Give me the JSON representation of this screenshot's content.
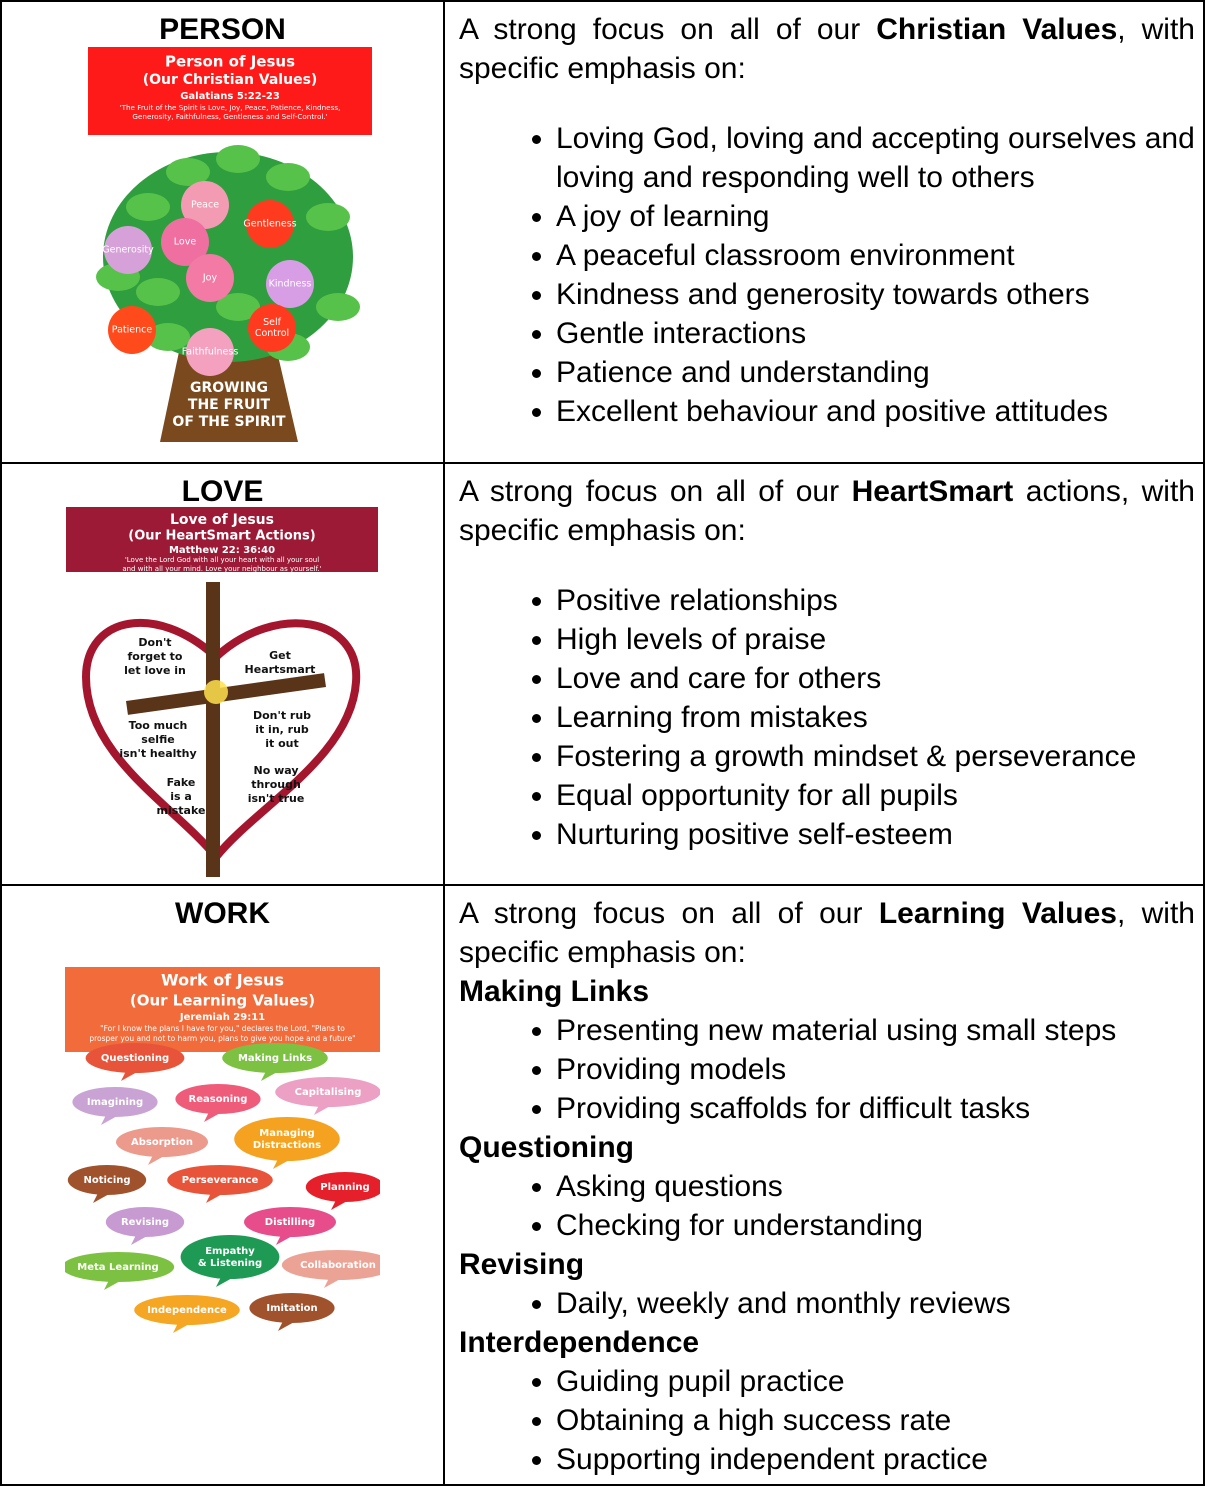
{
  "table": {
    "rows": [
      {
        "heading": "PERSON",
        "poster": {
          "title": "Person of Jesus",
          "subtitle": "(Our Christian Values)",
          "reference": "Galatians 5:22-23",
          "quote": [
            "'The Fruit of the Spirit is Love, Joy, Peace, Patience, Kindness,",
            "Generosity, Faithfulness, Gentleness and Self-Control.'"
          ],
          "labels": [
            [
              "Peace"
            ],
            [
              "Gentleness"
            ],
            [
              "Generosity"
            ],
            [
              "Love"
            ],
            [
              "Joy"
            ],
            [
              "Kindness"
            ],
            [
              "Patience"
            ],
            [
              "Self",
              "Control"
            ],
            [
              "Faithfulness"
            ]
          ],
          "footer": [
            "GROWING",
            "THE FRUIT",
            "OF THE SPIRIT"
          ]
        },
        "intro": {
          "before": "A strong focus on all of our ",
          "bold": "Christian Values",
          "after": ", with specific emphasis on:"
        },
        "bullets": [
          "Loving God, loving and accepting ourselves and loving and responding well to others",
          "A joy of learning",
          "A peaceful classroom environment",
          "Kindness and generosity towards others",
          "Gentle interactions",
          "Patience and understanding",
          "Excellent behaviour and positive attitudes"
        ]
      },
      {
        "heading": "LOVE",
        "poster": {
          "title": "Love of Jesus",
          "subtitle": "(Our HeartSmart Actions)",
          "reference": "Matthew 22: 36:40",
          "quote": [
            "'Love the Lord God with all your heart with all your soul",
            "and with all your mind. Love your neighbour as yourself.'"
          ],
          "labels": [
            [
              "Don't",
              "forget to",
              "let love in"
            ],
            [
              "Get",
              "Heartsmart"
            ],
            [
              "Too much",
              "selfie",
              "isn't healthy"
            ],
            [
              "Don't rub",
              "it in, rub",
              "it out"
            ],
            [
              "Fake",
              "is a",
              "mistake"
            ],
            [
              "No way",
              "through",
              "isn't true"
            ]
          ]
        },
        "intro": {
          "before": "A strong focus on all of our ",
          "bold": "HeartSmart",
          "after": " actions, with specific emphasis on:"
        },
        "bullets": [
          "Positive relationships",
          "High levels of praise",
          "Love and care for others",
          "Learning from mistakes",
          "Fostering a growth mindset & perseverance",
          "Equal opportunity for all pupils",
          "Nurturing positive self-esteem"
        ]
      },
      {
        "heading": "WORK",
        "poster": {
          "title": "Work of Jesus",
          "subtitle": "(Our Learning Values)",
          "reference": "Jeremiah 29:11",
          "quote": [
            "\"For I know the plans I have for you,\" declares the Lord, \"Plans to",
            "prosper you and not to harm you, plans to give you hope and a future\""
          ],
          "labels": [
            [
              "Questioning"
            ],
            [
              "Making Links"
            ],
            [
              "Imagining"
            ],
            [
              "Reasoning"
            ],
            [
              "Capitalising"
            ],
            [
              "Absorption"
            ],
            [
              "Managing",
              "Distractions"
            ],
            [
              "Noticing"
            ],
            [
              "Perseverance"
            ],
            [
              "Planning"
            ],
            [
              "Revising"
            ],
            [
              "Distilling"
            ],
            [
              "Meta Learning"
            ],
            [
              "Empathy",
              "& Listening"
            ],
            [
              "Collaboration"
            ],
            [
              "Independence"
            ],
            [
              "Imitation"
            ]
          ]
        },
        "intro": {
          "before": "A strong focus on all of our ",
          "bold": "Learning Values",
          "after": ", with specific emphasis on:"
        },
        "groups": [
          {
            "heading": "Making Links",
            "bullets": [
              "Presenting new material using small steps",
              "Providing models",
              "Providing scaffolds for difficult tasks"
            ]
          },
          {
            "heading": "Questioning",
            "bullets": [
              "Asking questions",
              "Checking for understanding"
            ]
          },
          {
            "heading": "Revising",
            "bullets": [
              "Daily, weekly and monthly reviews"
            ]
          },
          {
            "heading": "Interdependence",
            "bullets": [
              "Guiding pupil practice",
              "Obtaining a high success rate",
              "Supporting independent practice"
            ]
          }
        ]
      }
    ]
  }
}
